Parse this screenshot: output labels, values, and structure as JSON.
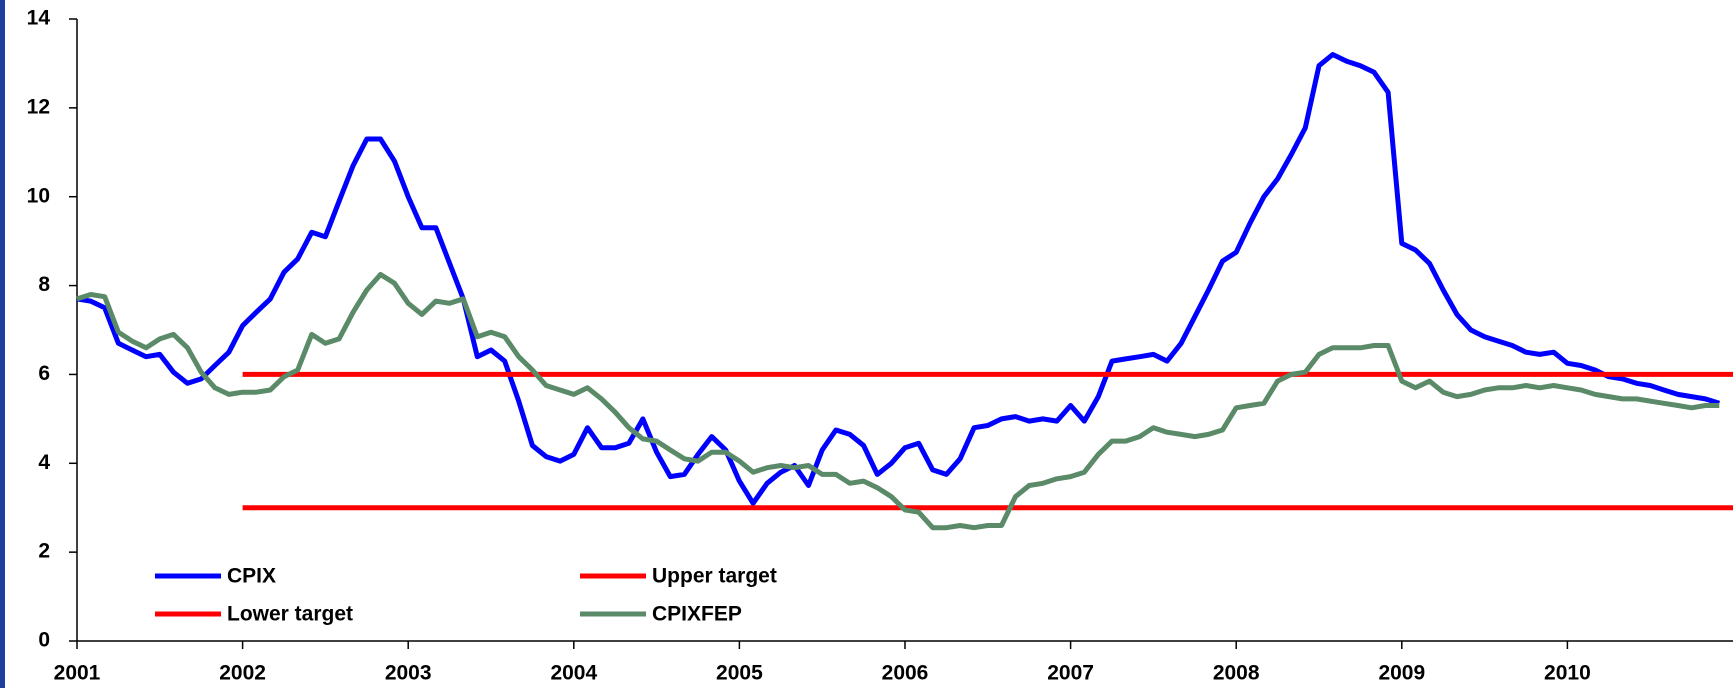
{
  "chart_data": {
    "type": "line",
    "x": [
      2001,
      2001.083,
      2001.167,
      2001.25,
      2001.333,
      2001.417,
      2001.5,
      2001.583,
      2001.667,
      2001.75,
      2001.833,
      2001.917,
      2002,
      2002.083,
      2002.167,
      2002.25,
      2002.333,
      2002.417,
      2002.5,
      2002.583,
      2002.667,
      2002.75,
      2002.833,
      2002.917,
      2003,
      2003.083,
      2003.167,
      2003.25,
      2003.333,
      2003.417,
      2003.5,
      2003.583,
      2003.667,
      2003.75,
      2003.833,
      2003.917,
      2004,
      2004.083,
      2004.167,
      2004.25,
      2004.333,
      2004.417,
      2004.5,
      2004.583,
      2004.667,
      2004.75,
      2004.833,
      2004.917,
      2005,
      2005.083,
      2005.167,
      2005.25,
      2005.333,
      2005.417,
      2005.5,
      2005.583,
      2005.667,
      2005.75,
      2005.833,
      2005.917,
      2006,
      2006.083,
      2006.167,
      2006.25,
      2006.333,
      2006.417,
      2006.5,
      2006.583,
      2006.667,
      2006.75,
      2006.833,
      2006.917,
      2007,
      2007.083,
      2007.167,
      2007.25,
      2007.333,
      2007.417,
      2007.5,
      2007.583,
      2007.667,
      2007.75,
      2007.833,
      2007.917,
      2008,
      2008.083,
      2008.167,
      2008.25,
      2008.333,
      2008.417,
      2008.5,
      2008.583,
      2008.667,
      2008.75,
      2008.833,
      2008.917,
      2009,
      2009.083,
      2009.167,
      2009.25,
      2009.333,
      2009.417,
      2009.5,
      2009.583,
      2009.667,
      2009.75,
      2009.833,
      2009.917,
      2010,
      2010.083,
      2010.167,
      2010.25,
      2010.333,
      2010.417,
      2010.5,
      2010.583,
      2010.667,
      2010.75,
      2010.833,
      2010.917
    ],
    "series": [
      {
        "name": "CPIX",
        "color": "#0000ff",
        "values": [
          7.7,
          7.65,
          7.5,
          6.7,
          6.55,
          6.4,
          6.45,
          6.05,
          5.8,
          5.9,
          6.2,
          6.5,
          7.1,
          7.4,
          7.7,
          8.3,
          8.6,
          9.2,
          9.1,
          9.9,
          10.7,
          11.3,
          11.3,
          10.8,
          10.0,
          9.3,
          9.3,
          8.5,
          7.7,
          6.4,
          6.55,
          6.3,
          5.4,
          4.4,
          4.15,
          4.05,
          4.2,
          4.8,
          4.35,
          4.35,
          4.45,
          5.0,
          4.25,
          3.7,
          3.75,
          4.2,
          4.6,
          4.3,
          3.6,
          3.1,
          3.55,
          3.8,
          3.95,
          3.5,
          4.3,
          4.75,
          4.65,
          4.4,
          3.75,
          4.0,
          4.35,
          4.45,
          3.85,
          3.75,
          4.1,
          4.8,
          4.85,
          5.0,
          5.05,
          4.95,
          5.0,
          4.95,
          5.3,
          4.95,
          5.5,
          6.3,
          6.35,
          6.4,
          6.45,
          6.3,
          6.7,
          7.3,
          7.9,
          8.55,
          8.75,
          9.4,
          10.0,
          10.4,
          10.95,
          11.55,
          12.95,
          13.2,
          13.05,
          12.95,
          12.8,
          12.35,
          8.95,
          8.8,
          8.5,
          7.9,
          7.35,
          7.0,
          6.85,
          6.75,
          6.65,
          6.5,
          6.45,
          6.5,
          6.25,
          6.2,
          6.1,
          5.95,
          5.9,
          5.8,
          5.75,
          5.65,
          5.55,
          5.5,
          5.45,
          5.35
        ]
      },
      {
        "name": "Upper target",
        "color": "#ff0000",
        "x": [
          2002,
          2011
        ],
        "values": [
          6,
          6
        ]
      },
      {
        "name": "Lower target",
        "color": "#ff0000",
        "x": [
          2002,
          2011
        ],
        "values": [
          3,
          3
        ]
      },
      {
        "name": "CPIXFEP",
        "color": "#5a8a68",
        "values": [
          7.7,
          7.8,
          7.75,
          6.95,
          6.75,
          6.6,
          6.8,
          6.9,
          6.6,
          6.05,
          5.7,
          5.55,
          5.6,
          5.6,
          5.65,
          5.95,
          6.1,
          6.9,
          6.7,
          6.8,
          7.4,
          7.9,
          8.25,
          8.05,
          7.6,
          7.35,
          7.65,
          7.6,
          7.7,
          6.85,
          6.95,
          6.85,
          6.4,
          6.1,
          5.75,
          5.65,
          5.55,
          5.7,
          5.45,
          5.15,
          4.8,
          4.55,
          4.5,
          4.3,
          4.1,
          4.05,
          4.25,
          4.25,
          4.05,
          3.8,
          3.9,
          3.95,
          3.9,
          3.95,
          3.75,
          3.75,
          3.55,
          3.6,
          3.45,
          3.25,
          2.95,
          2.9,
          2.55,
          2.55,
          2.6,
          2.55,
          2.6,
          2.6,
          3.25,
          3.5,
          3.55,
          3.65,
          3.7,
          3.8,
          4.2,
          4.5,
          4.5,
          4.6,
          4.8,
          4.7,
          4.65,
          4.6,
          4.65,
          4.75,
          5.25,
          5.3,
          5.35,
          5.85,
          6.0,
          6.05,
          6.45,
          6.6,
          6.6,
          6.6,
          6.65,
          6.65,
          5.85,
          5.7,
          5.85,
          5.6,
          5.5,
          5.55,
          5.65,
          5.7,
          5.7,
          5.75,
          5.7,
          5.75,
          5.7,
          5.65,
          5.55,
          5.5,
          5.45,
          5.45,
          5.4,
          5.35,
          5.3,
          5.25,
          5.3,
          5.3
        ]
      }
    ],
    "xlim": [
      2001,
      2011
    ],
    "xticks": [
      2001,
      2002,
      2003,
      2004,
      2005,
      2006,
      2007,
      2008,
      2009,
      2010
    ],
    "ylim": [
      0,
      14
    ],
    "yticks": [
      0,
      2,
      4,
      6,
      8,
      10,
      12,
      14
    ]
  }
}
